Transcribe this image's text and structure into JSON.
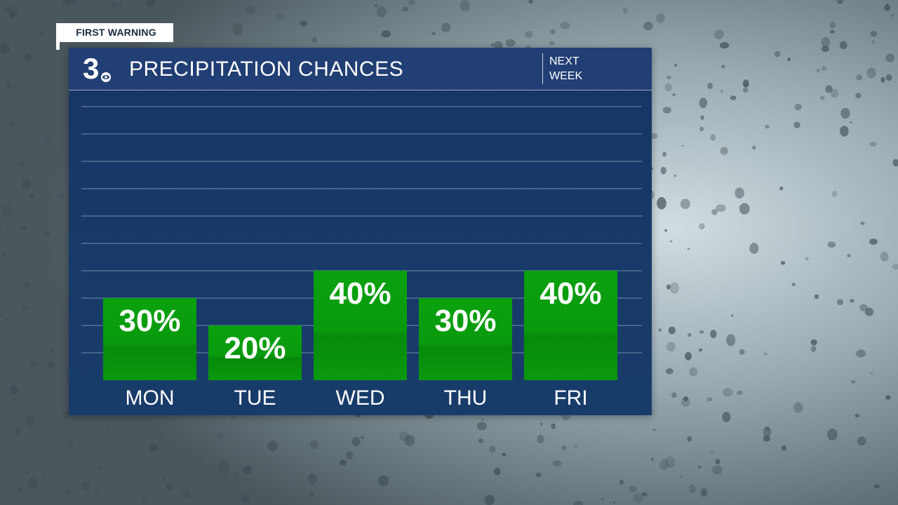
{
  "badge": {
    "label": "FIRST WARNING"
  },
  "header": {
    "logo_text": "3",
    "title": "PRECIPITATION CHANCES",
    "period": "NEXT\nWEEK"
  },
  "colors": {
    "panel": "#173a69",
    "header": "#213f74",
    "bar": "#0b9e0f",
    "bar_dark": "#088c0c",
    "text": "#ffffff"
  },
  "chart_data": {
    "type": "bar",
    "title": "PRECIPITATION CHANCES",
    "categories": [
      "MON",
      "TUE",
      "WED",
      "THU",
      "FRI"
    ],
    "values": [
      30,
      20,
      40,
      30,
      40
    ],
    "value_labels": [
      "30%",
      "20%",
      "40%",
      "30%",
      "40%"
    ],
    "ylim": [
      0,
      100
    ],
    "grid": true,
    "unit": "%"
  }
}
